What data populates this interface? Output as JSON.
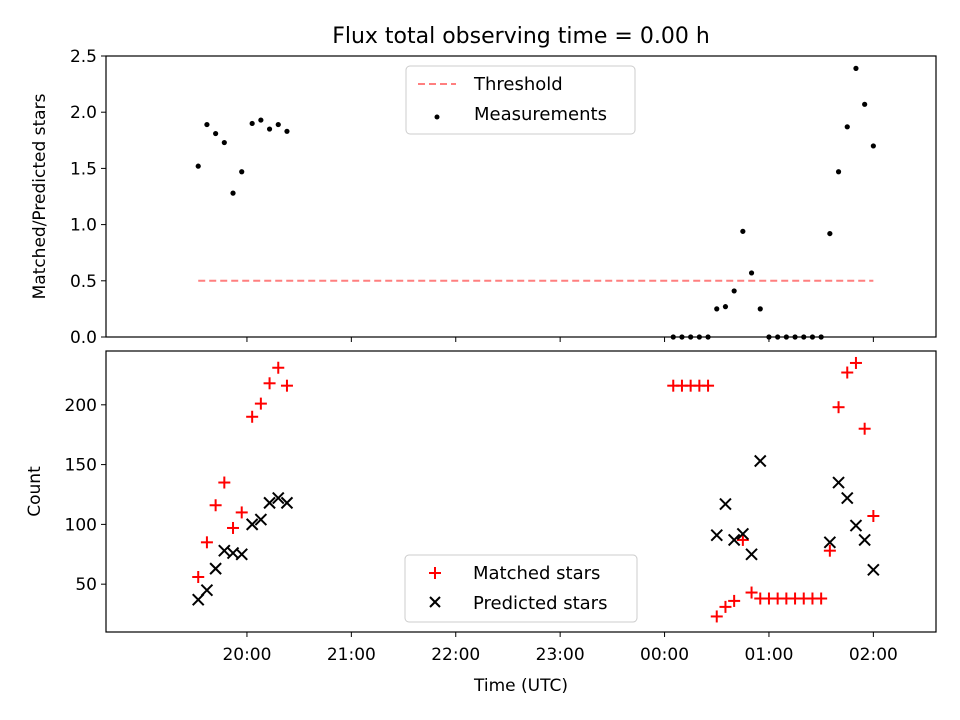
{
  "chart_data": [
    {
      "type": "scatter",
      "title": "Flux total observing time = 0.00 h",
      "ylabel": "Matched/Predicted stars",
      "xlabel": "",
      "x_axis": "shared time, hours since midnight on previous day",
      "ylim": [
        0,
        2.5
      ],
      "yticks": [
        "0.0",
        "0.5",
        "1.0",
        "1.5",
        "2.0",
        "2.5"
      ],
      "legend": {
        "placement": "top-center",
        "entries": [
          "Threshold",
          "Measurements"
        ]
      },
      "threshold": {
        "name": "Threshold",
        "value": 0.5,
        "x_range": [
          "19:32",
          "02:00"
        ],
        "color": "#ff7f7f",
        "style": "dashed"
      },
      "series": [
        {
          "name": "Measurements",
          "color": "#000000",
          "points": [
            {
              "x": "19:32",
              "y": 1.52
            },
            {
              "x": "19:37",
              "y": 1.89
            },
            {
              "x": "19:42",
              "y": 1.81
            },
            {
              "x": "19:47",
              "y": 1.73
            },
            {
              "x": "19:52",
              "y": 1.28
            },
            {
              "x": "19:57",
              "y": 1.47
            },
            {
              "x": "20:03",
              "y": 1.9
            },
            {
              "x": "20:08",
              "y": 1.93
            },
            {
              "x": "20:13",
              "y": 1.85
            },
            {
              "x": "20:18",
              "y": 1.89
            },
            {
              "x": "20:23",
              "y": 1.83
            },
            {
              "x": "00:05",
              "y": 0.0
            },
            {
              "x": "00:10",
              "y": 0.0
            },
            {
              "x": "00:15",
              "y": 0.0
            },
            {
              "x": "00:20",
              "y": 0.0
            },
            {
              "x": "00:25",
              "y": 0.0
            },
            {
              "x": "00:30",
              "y": 0.25
            },
            {
              "x": "00:35",
              "y": 0.27
            },
            {
              "x": "00:40",
              "y": 0.41
            },
            {
              "x": "00:45",
              "y": 0.94
            },
            {
              "x": "00:50",
              "y": 0.57
            },
            {
              "x": "00:55",
              "y": 0.25
            },
            {
              "x": "01:00",
              "y": 0.0
            },
            {
              "x": "01:05",
              "y": 0.0
            },
            {
              "x": "01:10",
              "y": 0.0
            },
            {
              "x": "01:15",
              "y": 0.0
            },
            {
              "x": "01:20",
              "y": 0.0
            },
            {
              "x": "01:25",
              "y": 0.0
            },
            {
              "x": "01:30",
              "y": 0.0
            },
            {
              "x": "01:35",
              "y": 0.92
            },
            {
              "x": "01:40",
              "y": 1.47
            },
            {
              "x": "01:45",
              "y": 1.87
            },
            {
              "x": "01:50",
              "y": 2.39
            },
            {
              "x": "01:55",
              "y": 2.07
            },
            {
              "x": "02:00",
              "y": 1.7
            }
          ]
        }
      ]
    },
    {
      "type": "scatter",
      "title": "",
      "ylabel": "Count",
      "xlabel": "Time (UTC)",
      "ylim": [
        10,
        245
      ],
      "yticks": [
        "50",
        "100",
        "150",
        "200"
      ],
      "xticks": [
        "20:00",
        "21:00",
        "22:00",
        "23:00",
        "00:00",
        "01:00",
        "02:00"
      ],
      "legend": {
        "placement": "bottom-center",
        "entries": [
          "Matched stars",
          "Predicted stars"
        ]
      },
      "series": [
        {
          "name": "Matched stars",
          "marker": "plus",
          "color": "#ff0000",
          "points": [
            {
              "x": "19:32",
              "y": 56
            },
            {
              "x": "19:37",
              "y": 85
            },
            {
              "x": "19:42",
              "y": 116
            },
            {
              "x": "19:47",
              "y": 135
            },
            {
              "x": "19:52",
              "y": 97
            },
            {
              "x": "19:57",
              "y": 110
            },
            {
              "x": "20:03",
              "y": 190
            },
            {
              "x": "20:08",
              "y": 201
            },
            {
              "x": "20:13",
              "y": 218
            },
            {
              "x": "20:18",
              "y": 231
            },
            {
              "x": "20:23",
              "y": 216
            },
            {
              "x": "00:05",
              "y": 216
            },
            {
              "x": "00:10",
              "y": 216
            },
            {
              "x": "00:15",
              "y": 216
            },
            {
              "x": "00:20",
              "y": 216
            },
            {
              "x": "00:25",
              "y": 216
            },
            {
              "x": "00:30",
              "y": 23
            },
            {
              "x": "00:35",
              "y": 31
            },
            {
              "x": "00:40",
              "y": 36
            },
            {
              "x": "00:45",
              "y": 87
            },
            {
              "x": "00:50",
              "y": 43
            },
            {
              "x": "00:55",
              "y": 38
            },
            {
              "x": "01:00",
              "y": 38
            },
            {
              "x": "01:05",
              "y": 38
            },
            {
              "x": "01:10",
              "y": 38
            },
            {
              "x": "01:15",
              "y": 38
            },
            {
              "x": "01:20",
              "y": 38
            },
            {
              "x": "01:25",
              "y": 38
            },
            {
              "x": "01:30",
              "y": 38
            },
            {
              "x": "01:35",
              "y": 78
            },
            {
              "x": "01:40",
              "y": 198
            },
            {
              "x": "01:45",
              "y": 227
            },
            {
              "x": "01:50",
              "y": 235
            },
            {
              "x": "01:55",
              "y": 180
            },
            {
              "x": "02:00",
              "y": 107
            }
          ]
        },
        {
          "name": "Predicted stars",
          "marker": "x",
          "color": "#000000",
          "points": [
            {
              "x": "19:32",
              "y": 37
            },
            {
              "x": "19:37",
              "y": 45
            },
            {
              "x": "19:42",
              "y": 63
            },
            {
              "x": "19:47",
              "y": 78
            },
            {
              "x": "19:52",
              "y": 76
            },
            {
              "x": "19:57",
              "y": 75
            },
            {
              "x": "20:03",
              "y": 100
            },
            {
              "x": "20:08",
              "y": 104
            },
            {
              "x": "20:13",
              "y": 118
            },
            {
              "x": "20:18",
              "y": 122
            },
            {
              "x": "20:23",
              "y": 118
            },
            {
              "x": "00:30",
              "y": 91
            },
            {
              "x": "00:35",
              "y": 117
            },
            {
              "x": "00:40",
              "y": 87
            },
            {
              "x": "00:45",
              "y": 92
            },
            {
              "x": "00:50",
              "y": 75
            },
            {
              "x": "00:55",
              "y": 153
            },
            {
              "x": "01:35",
              "y": 85
            },
            {
              "x": "01:40",
              "y": 135
            },
            {
              "x": "01:45",
              "y": 122
            },
            {
              "x": "01:50",
              "y": 99
            },
            {
              "x": "01:55",
              "y": 87
            },
            {
              "x": "02:00",
              "y": 62
            }
          ]
        }
      ]
    }
  ]
}
